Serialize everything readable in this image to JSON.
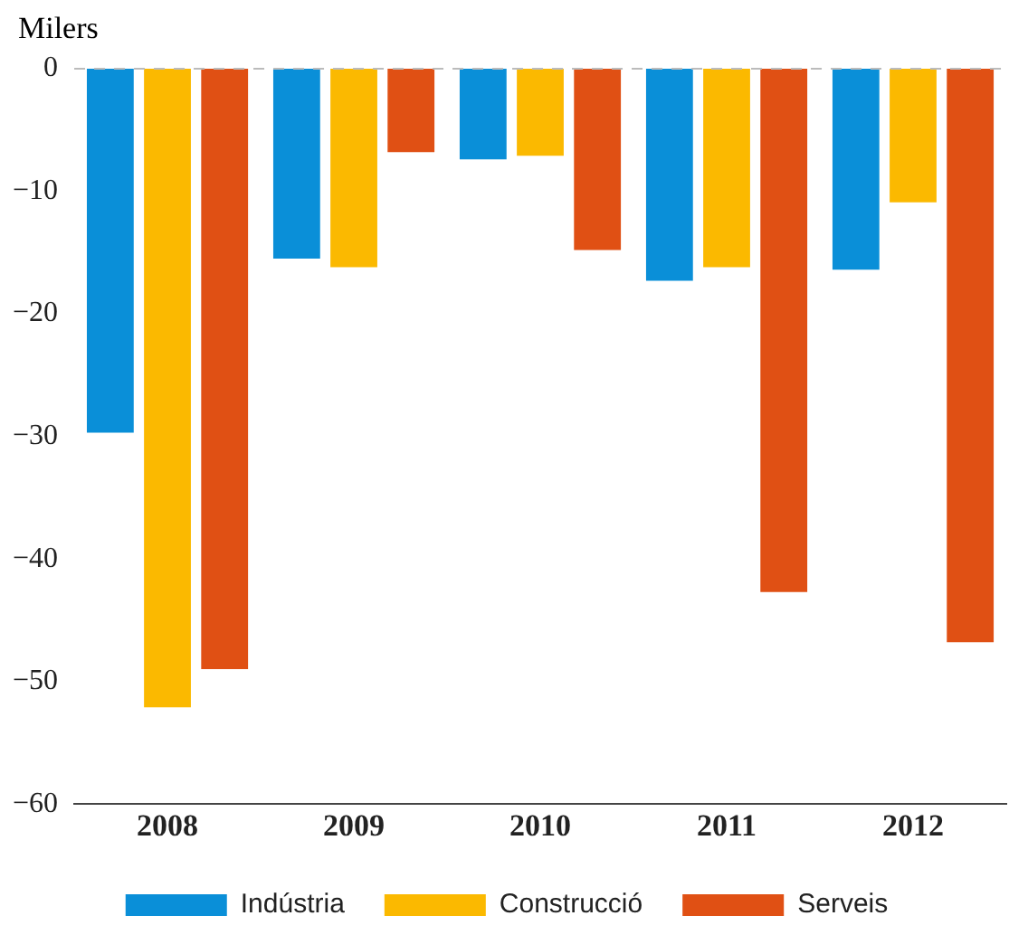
{
  "chart_data": {
    "type": "bar",
    "ylabel": "Milers",
    "categories": [
      "2008",
      "2009",
      "2010",
      "2011",
      "2012"
    ],
    "series": [
      {
        "name": "Indústria",
        "color": "#0a8fd8",
        "values": [
          -29.7,
          -15.5,
          -7.4,
          -17.3,
          -16.4
        ]
      },
      {
        "name": "Construcció",
        "color": "#fbb900",
        "values": [
          -52.1,
          -16.2,
          -7.1,
          -16.2,
          -10.9
        ]
      },
      {
        "name": "Serveis",
        "color": "#e05014",
        "values": [
          -49.0,
          -6.8,
          -14.8,
          -42.7,
          -46.8
        ]
      }
    ],
    "ylim": [
      -60,
      0
    ],
    "yticks": [
      {
        "value": -60,
        "label": "−60"
      },
      {
        "value": -50,
        "label": "−50"
      },
      {
        "value": -40,
        "label": "−40"
      },
      {
        "value": -30,
        "label": "−30"
      },
      {
        "value": -20,
        "label": "−20"
      },
      {
        "value": -10,
        "label": "−10"
      },
      0
    ],
    "ref_lines": [
      {
        "axis": "y",
        "value": 0,
        "color": "#bbbbbb",
        "line_style": "dashed"
      }
    ],
    "grid": false,
    "legend": "bottom"
  }
}
